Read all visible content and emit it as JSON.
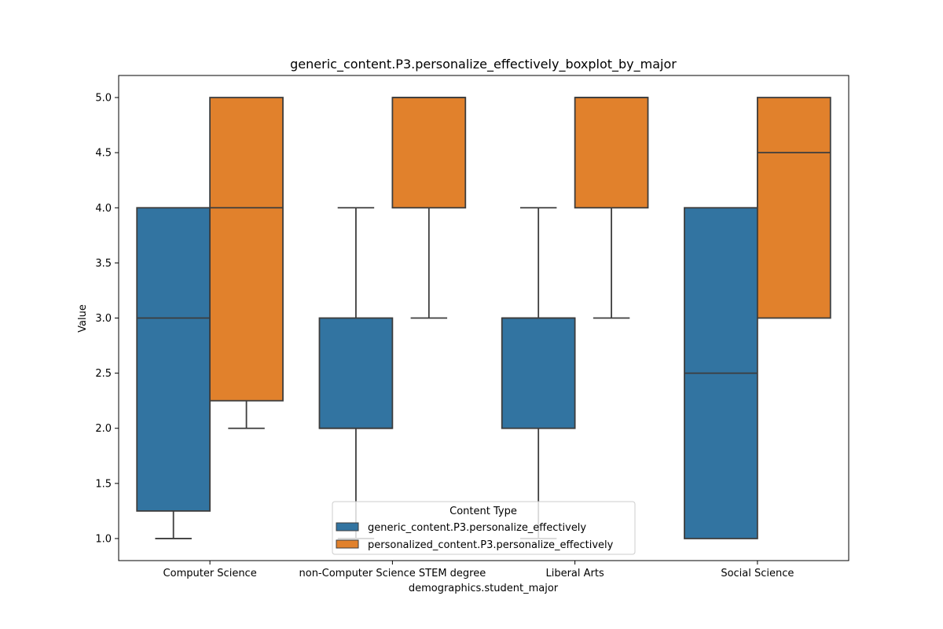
{
  "chart_data": {
    "type": "boxplot",
    "title": "generic_content.P3.personalize_effectively_boxplot_by_major",
    "xlabel": "demographics.student_major",
    "ylabel": "Value",
    "ylim": [
      0.8,
      5.2
    ],
    "yticks": [
      1.0,
      1.5,
      2.0,
      2.5,
      3.0,
      3.5,
      4.0,
      4.5,
      5.0
    ],
    "ytick_labels": [
      "1.0",
      "1.5",
      "2.0",
      "2.5",
      "3.0",
      "3.5",
      "4.0",
      "4.5",
      "5.0"
    ],
    "categories": [
      "Computer Science",
      "non-Computer Science STEM degree",
      "Liberal Arts",
      "Social Science"
    ],
    "grid": false,
    "legend": {
      "title": "Content Type",
      "position": "lower-center"
    },
    "series": [
      {
        "name": "generic_content.P3.personalize_effectively",
        "color": "#3274a1",
        "boxes": [
          {
            "whisker_low": 1.0,
            "q1": 1.25,
            "median": 3.0,
            "q3": 4.0,
            "whisker_high": 4.0
          },
          {
            "whisker_low": 1.0,
            "q1": 2.0,
            "median": 2.0,
            "q3": 3.0,
            "whisker_high": 4.0
          },
          {
            "whisker_low": 1.0,
            "q1": 2.0,
            "median": 3.0,
            "q3": 3.0,
            "whisker_high": 4.0
          },
          {
            "whisker_low": 1.0,
            "q1": 1.0,
            "median": 2.5,
            "q3": 4.0,
            "whisker_high": 4.0
          }
        ]
      },
      {
        "name": "personalized_content.P3.personalize_effectively",
        "color": "#e1812c",
        "boxes": [
          {
            "whisker_low": 2.0,
            "q1": 2.25,
            "median": 4.0,
            "q3": 5.0,
            "whisker_high": 5.0
          },
          {
            "whisker_low": 3.0,
            "q1": 4.0,
            "median": 5.0,
            "q3": 5.0,
            "whisker_high": 5.0
          },
          {
            "whisker_low": 3.0,
            "q1": 4.0,
            "median": 5.0,
            "q3": 5.0,
            "whisker_high": 5.0
          },
          {
            "whisker_low": 3.0,
            "q1": 3.0,
            "median": 4.5,
            "q3": 5.0,
            "whisker_high": 5.0
          }
        ]
      }
    ]
  }
}
